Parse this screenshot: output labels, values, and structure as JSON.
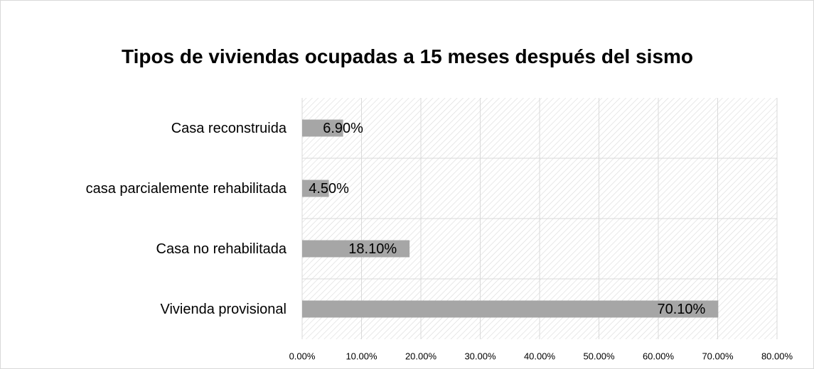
{
  "chart_data": {
    "type": "barh",
    "title": "Tipos de  viviendas ocupadas a 15 meses después del sismo",
    "categories": [
      "Casa reconstruida",
      "casa parcialemente rehabilitada",
      "Casa no rehabilitada",
      "Vivienda provisional"
    ],
    "values": [
      6.9,
      4.5,
      18.1,
      70.1
    ],
    "value_labels": [
      "6.90%",
      "4.50%",
      "18.10%",
      "70.10%"
    ],
    "color": "#a6a6a6",
    "xlim": [
      0,
      80
    ],
    "xticks": [
      {
        "value": 0,
        "label": "0.00%"
      },
      {
        "value": 10,
        "label": "10.00%"
      },
      {
        "value": 20,
        "label": "20.00%"
      },
      {
        "value": 30,
        "label": "30.00%"
      },
      {
        "value": 40,
        "label": "40.00%"
      },
      {
        "value": 50,
        "label": "50.00%"
      },
      {
        "value": 60,
        "label": "60.00%"
      },
      {
        "value": 70,
        "label": "70.00%"
      },
      {
        "value": 80,
        "label": "80.00%"
      }
    ],
    "grid": true
  }
}
